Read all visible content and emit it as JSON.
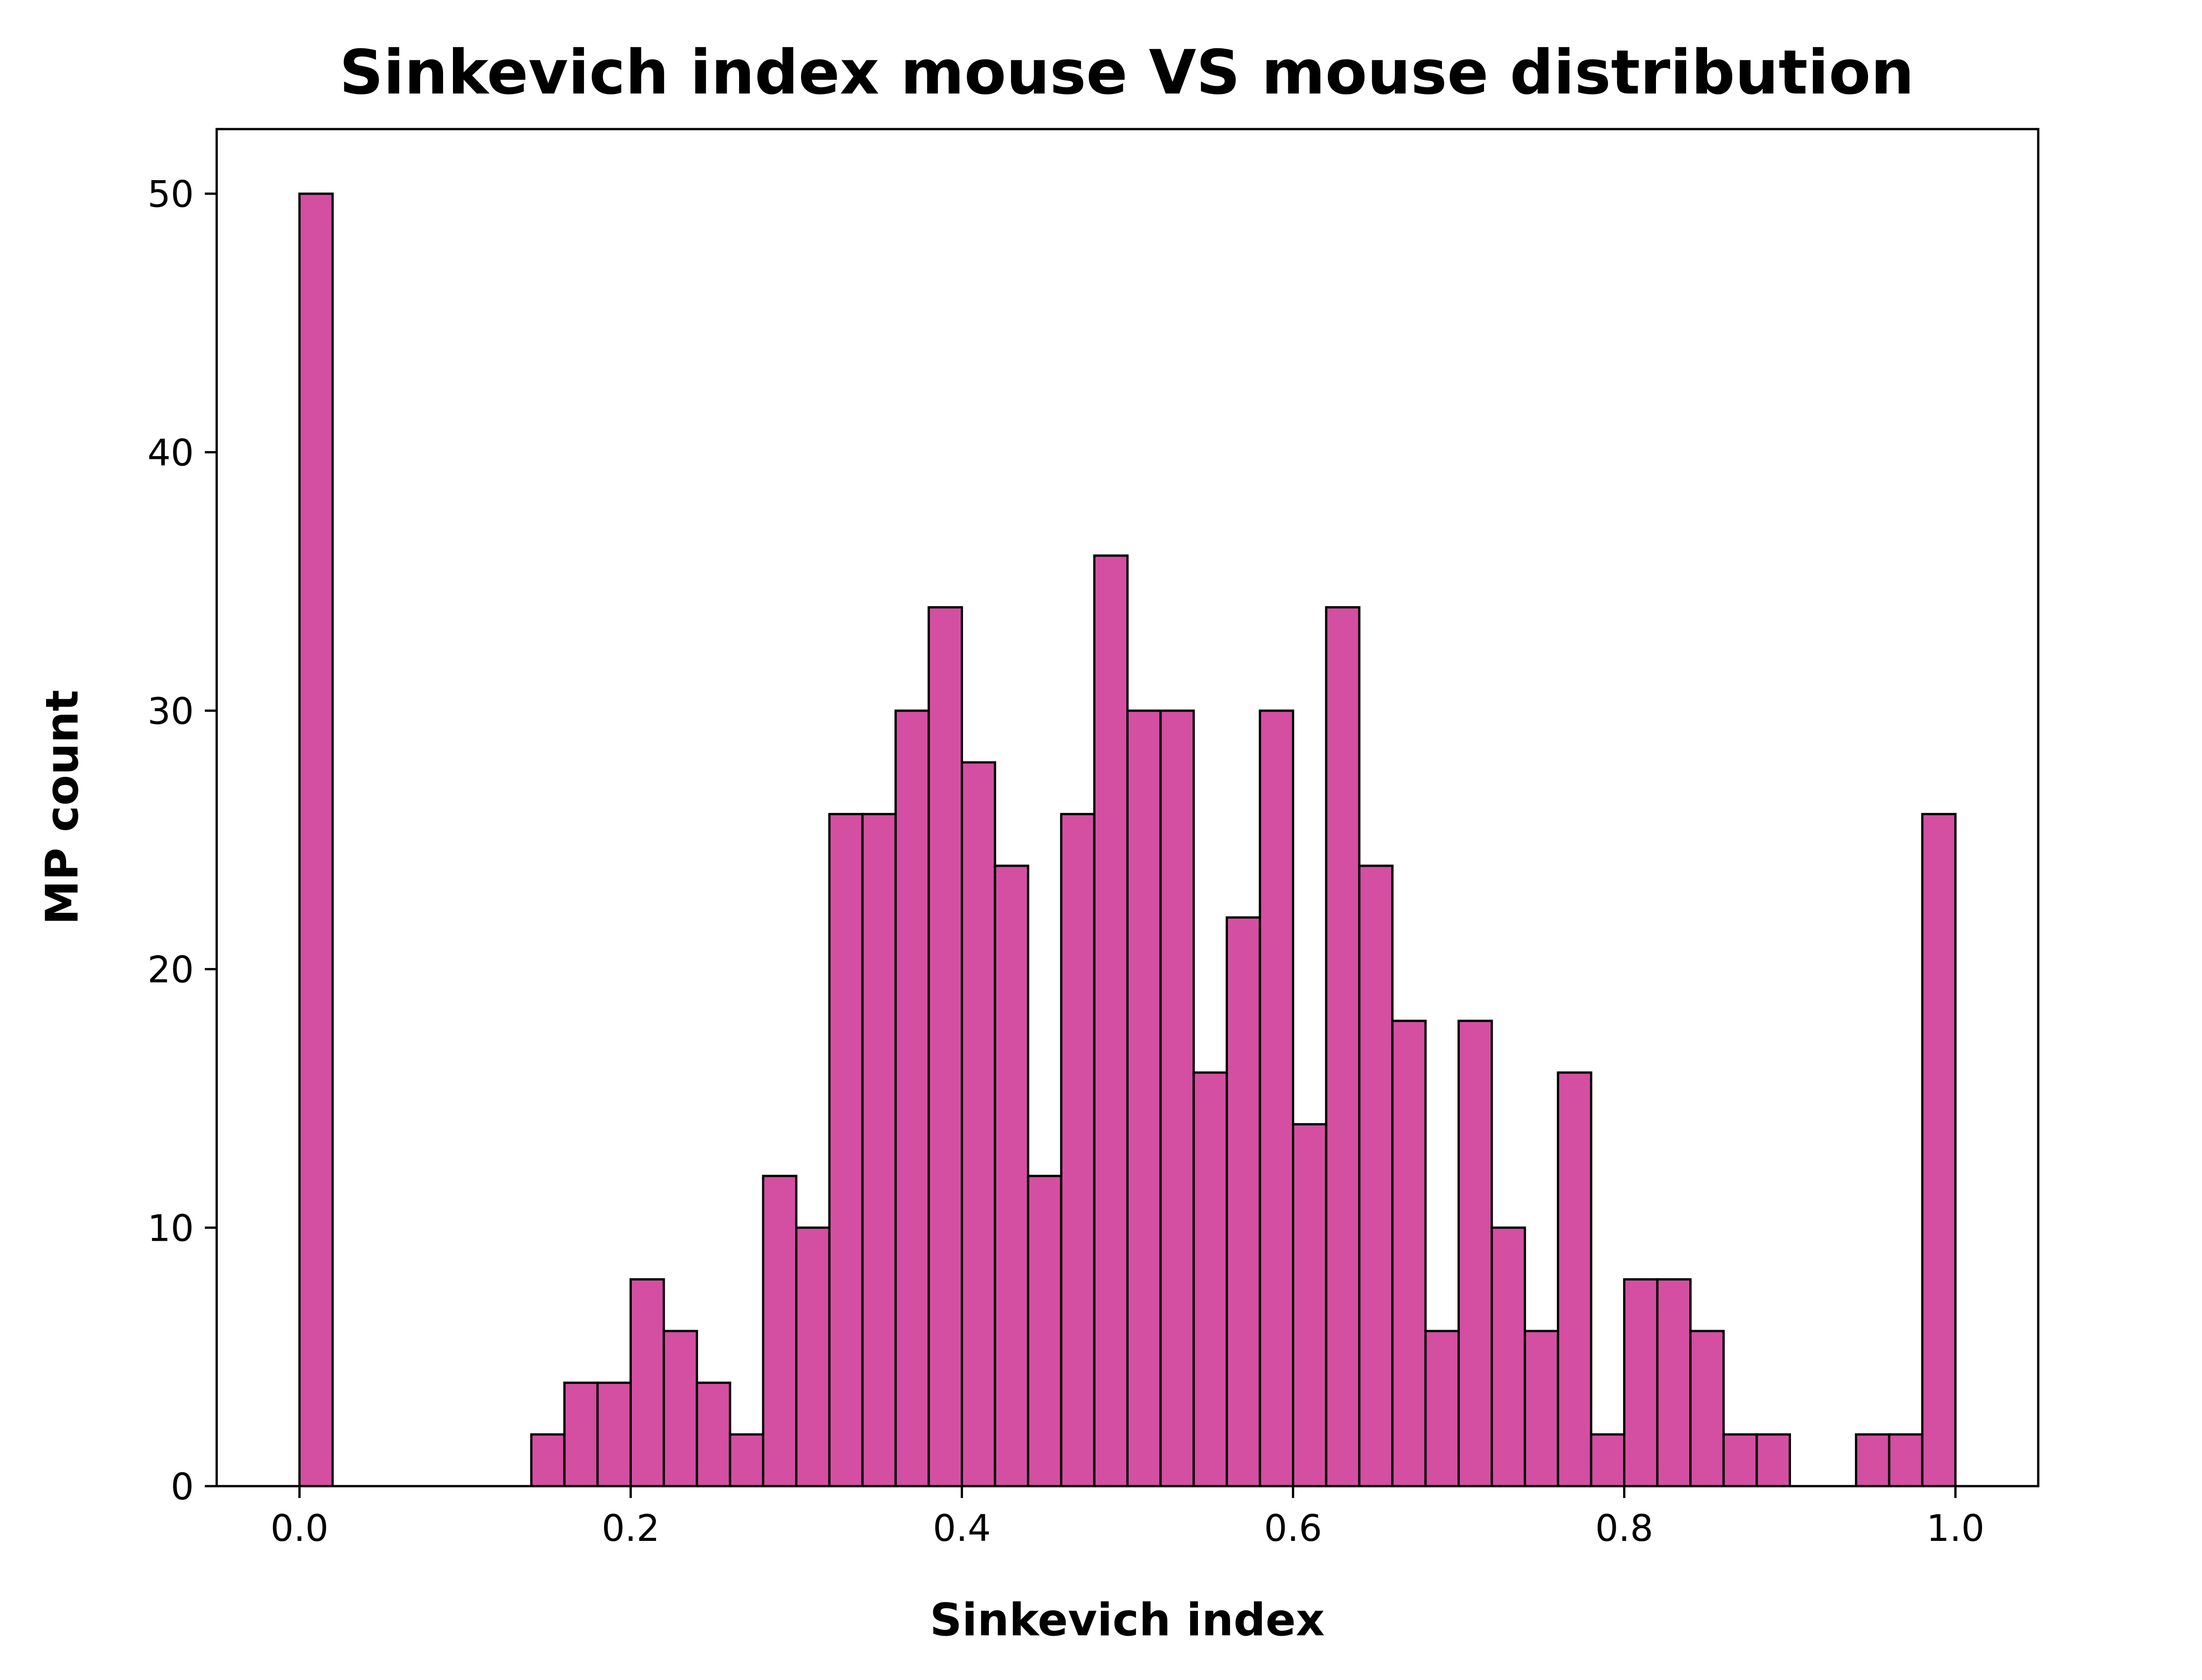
{
  "chart_data": {
    "type": "bar",
    "title": "Sinkevich index mouse VS mouse distribution",
    "xlabel": "Sinkevich index",
    "ylabel": "MP count",
    "xlim": [
      -0.05,
      1.05
    ],
    "ylim": [
      0,
      52.5
    ],
    "bin_width": 0.02,
    "x": [
      0.0,
      0.02,
      0.04,
      0.06,
      0.08,
      0.1,
      0.12,
      0.14,
      0.16,
      0.18,
      0.2,
      0.22,
      0.24,
      0.26,
      0.28,
      0.3,
      0.32,
      0.34,
      0.36,
      0.38,
      0.4,
      0.42,
      0.44,
      0.46,
      0.48,
      0.5,
      0.52,
      0.54,
      0.56,
      0.58,
      0.6,
      0.62,
      0.64,
      0.66,
      0.68,
      0.7,
      0.72,
      0.74,
      0.76,
      0.78,
      0.8,
      0.82,
      0.84,
      0.86,
      0.88,
      0.9,
      0.92,
      0.94,
      0.96,
      0.98
    ],
    "values": [
      50,
      0,
      0,
      0,
      0,
      0,
      0,
      2,
      4,
      4,
      8,
      6,
      4,
      2,
      12,
      10,
      26,
      26,
      30,
      34,
      28,
      24,
      12,
      26,
      36,
      30,
      30,
      16,
      22,
      30,
      14,
      34,
      24,
      18,
      6,
      18,
      10,
      6,
      16,
      2,
      8,
      8,
      6,
      2,
      2,
      0,
      0,
      2,
      2,
      26
    ],
    "x_ticks": [
      "0.0",
      "0.2",
      "0.4",
      "0.6",
      "0.8",
      "1.0"
    ],
    "y_ticks": [
      "0",
      "10",
      "20",
      "30",
      "40",
      "50"
    ],
    "bar_color": "#d44fa2",
    "edge_color": "#000000",
    "grid": false,
    "legend": "none"
  }
}
